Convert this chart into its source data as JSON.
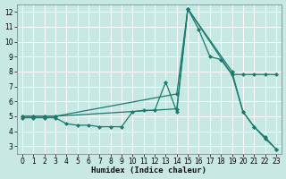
{
  "xlabel": "Humidex (Indice chaleur)",
  "background_color": "#c8e8e4",
  "grid_color": "#ffffff",
  "line_color": "#1a7a6e",
  "xlim": [
    -0.5,
    23.5
  ],
  "ylim": [
    2.5,
    12.5
  ],
  "xticks": [
    0,
    1,
    2,
    3,
    4,
    5,
    6,
    7,
    8,
    9,
    10,
    11,
    12,
    13,
    14,
    15,
    16,
    17,
    18,
    19,
    20,
    21,
    22,
    23
  ],
  "yticks": [
    3,
    4,
    5,
    6,
    7,
    8,
    9,
    10,
    11,
    12
  ],
  "line1_x": [
    0,
    1,
    2,
    3,
    4,
    5,
    6,
    7,
    8,
    9,
    10,
    11,
    12,
    13,
    14,
    15,
    16,
    17,
    18,
    19,
    20,
    21,
    22,
    23
  ],
  "line1_y": [
    4.9,
    4.9,
    4.9,
    4.9,
    4.5,
    4.4,
    4.4,
    4.3,
    4.3,
    4.3,
    5.3,
    5.4,
    5.4,
    7.3,
    5.3,
    12.2,
    10.8,
    9.0,
    8.8,
    7.8,
    5.3,
    4.3,
    3.5,
    2.8
  ],
  "line2_x": [
    0,
    1,
    2,
    3,
    14,
    15,
    19,
    20,
    21,
    22,
    23
  ],
  "line2_y": [
    5.0,
    5.0,
    5.0,
    5.0,
    6.5,
    12.2,
    8.0,
    5.3,
    4.3,
    3.6,
    2.8
  ],
  "line3_x": [
    0,
    1,
    2,
    3,
    14,
    15,
    19,
    20,
    21,
    22,
    23
  ],
  "line3_y": [
    5.0,
    5.0,
    5.0,
    5.0,
    5.5,
    12.2,
    7.8,
    7.8,
    7.8,
    7.8,
    7.8
  ]
}
